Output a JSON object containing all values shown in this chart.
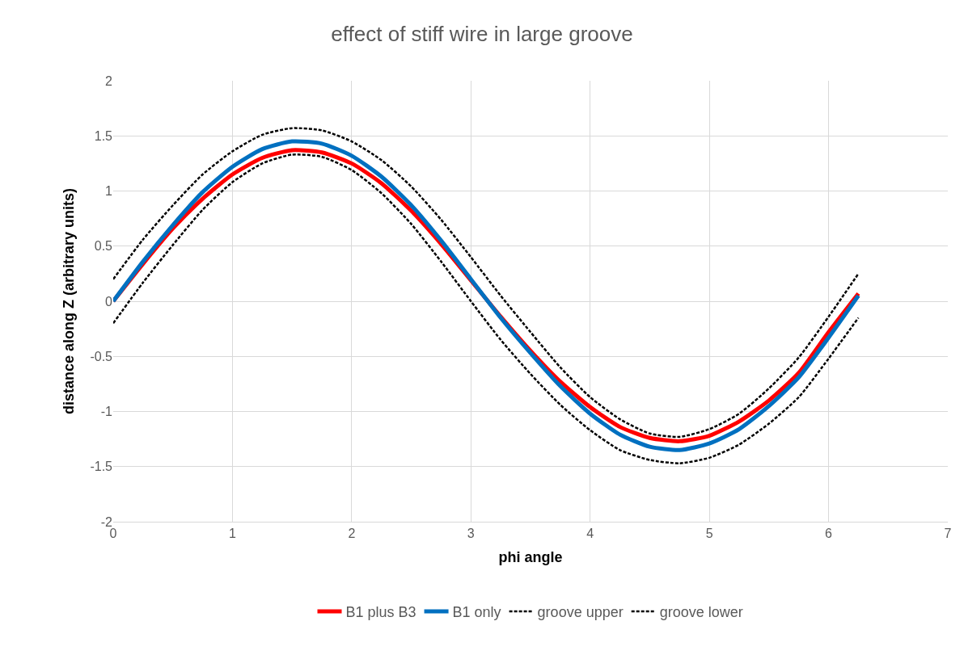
{
  "chart_data": {
    "type": "line",
    "title": "effect of stiff wire in large groove",
    "xlabel": "phi angle",
    "ylabel": "distance along Z (arbitrary units)",
    "x": [
      0,
      0.25,
      0.5,
      0.75,
      1,
      1.25,
      1.5,
      1.75,
      2,
      2.25,
      2.5,
      2.75,
      3,
      3.25,
      3.5,
      3.75,
      4,
      4.25,
      4.5,
      4.75,
      5,
      5.25,
      5.5,
      5.75,
      6,
      6.25
    ],
    "series": [
      {
        "name": "B1 plus B3",
        "color": "#ff0000",
        "values": [
          0,
          0.34,
          0.66,
          0.93,
          1.15,
          1.3,
          1.37,
          1.35,
          1.25,
          1.07,
          0.82,
          0.52,
          0.19,
          -0.14,
          -0.45,
          -0.73,
          -0.96,
          -1.14,
          -1.24,
          -1.27,
          -1.22,
          -1.09,
          -0.9,
          -0.65,
          -0.28,
          0.07
        ]
      },
      {
        "name": "B1 only",
        "color": "#0070c0",
        "values": [
          0,
          0.36,
          0.69,
          0.99,
          1.22,
          1.38,
          1.45,
          1.43,
          1.32,
          1.13,
          0.87,
          0.55,
          0.2,
          -0.15,
          -0.47,
          -0.77,
          -1.02,
          -1.21,
          -1.32,
          -1.35,
          -1.29,
          -1.16,
          -0.95,
          -0.69,
          -0.33,
          0.05
        ]
      },
      {
        "name": "groove upper",
        "color": "#000000",
        "line_style": "dashed",
        "values": [
          0.2,
          0.56,
          0.87,
          1.15,
          1.36,
          1.51,
          1.57,
          1.55,
          1.45,
          1.28,
          1.04,
          0.74,
          0.4,
          0.05,
          -0.28,
          -0.6,
          -0.87,
          -1.07,
          -1.2,
          -1.23,
          -1.16,
          -1.02,
          -0.79,
          -0.51,
          -0.14,
          0.25
        ]
      },
      {
        "name": "groove lower",
        "color": "#000000",
        "line_style": "dashed",
        "values": [
          -0.2,
          0.17,
          0.51,
          0.83,
          1.08,
          1.25,
          1.33,
          1.31,
          1.19,
          0.98,
          0.7,
          0.36,
          0.0,
          -0.35,
          -0.66,
          -0.94,
          -1.17,
          -1.35,
          -1.44,
          -1.47,
          -1.42,
          -1.3,
          -1.11,
          -0.87,
          -0.52,
          -0.15
        ]
      }
    ],
    "xlim": [
      0,
      7
    ],
    "xticks": [
      0,
      1,
      2,
      3,
      4,
      5,
      6,
      7
    ],
    "ylim": [
      -2,
      2
    ],
    "yticks": [
      -2,
      -1.5,
      -1,
      -0.5,
      0,
      0.5,
      1,
      1.5,
      2
    ],
    "grid": true,
    "legend": "bottom",
    "marker": "none",
    "line_style": "solid"
  }
}
